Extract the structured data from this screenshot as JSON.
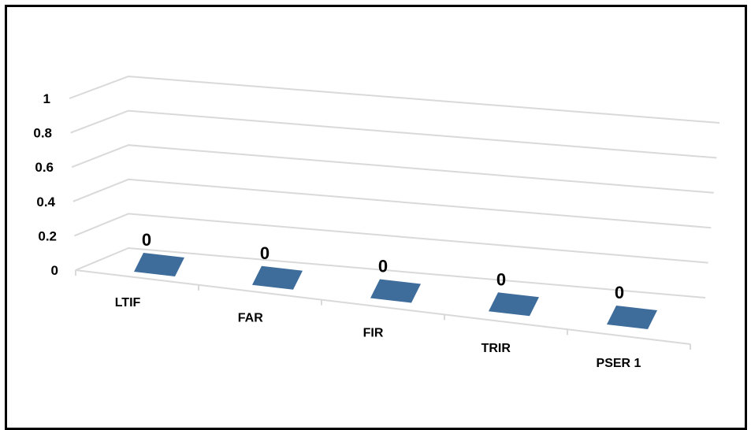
{
  "chart_data": {
    "type": "bar",
    "style": "3d-column",
    "title": "",
    "xlabel": "",
    "ylabel": "",
    "categories": [
      "LTIF",
      "FAR",
      "FIR",
      "TRIR",
      "PSER 1"
    ],
    "values": [
      0,
      0,
      0,
      0,
      0
    ],
    "data_labels": [
      "0",
      "0",
      "0",
      "0",
      "0"
    ],
    "y_ticks": [
      "0",
      "0.2",
      "0.4",
      "0.6",
      "0.8",
      "1"
    ],
    "ylim": [
      0,
      1
    ],
    "grid": true,
    "legend": "none",
    "colors": {
      "bar_top": "#3E6C9B",
      "gridline": "#D9D9D9",
      "border": "#000000"
    }
  }
}
